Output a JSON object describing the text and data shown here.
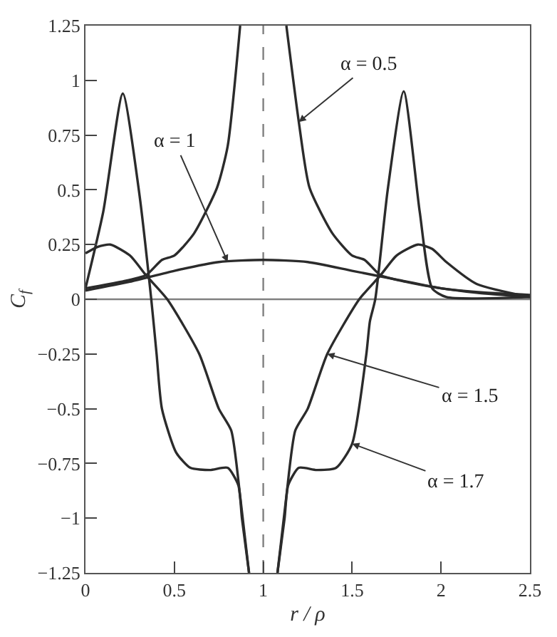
{
  "chart_data": {
    "type": "line",
    "xlabel": "r / ρ",
    "ylabel": "C$_{f}$",
    "xlim": [
      0,
      2.5
    ],
    "xticks": [
      0,
      0.5,
      1,
      1.5,
      2,
      2.5
    ],
    "ylim": [
      -1.25,
      1.25
    ],
    "yticks": [
      {
        "value": -1.25,
        "label": "−1.25"
      },
      {
        "value": -1,
        "label": "−1"
      },
      {
        "value": -0.75,
        "label": "−0.75"
      },
      {
        "value": -0.5,
        "label": "−0.5"
      },
      {
        "value": -0.25,
        "label": "−0.25"
      },
      0,
      0.25,
      0.5,
      0.75,
      1,
      1.25
    ],
    "grid": false,
    "marker": "none",
    "line_style": "solid",
    "series": [
      {
        "color": "#2b2b2b",
        "x": [
          0,
          0.2,
          0.34,
          0.43,
          0.5,
          0.61,
          0.74,
          0.8,
          0.87,
          1.0,
          1.13,
          1.2,
          1.26,
          1.39,
          1.5,
          1.57,
          1.66,
          1.8,
          2.0,
          2.2,
          2.5
        ],
        "values": [
          0.05,
          0.08,
          0.11,
          0.18,
          0.2,
          0.3,
          0.51,
          0.7,
          1.25,
          null,
          1.25,
          0.81,
          0.51,
          0.3,
          0.2,
          0.18,
          0.11,
          0.08,
          0.05,
          0.03,
          0.01
        ]
      },
      {
        "color": "#2b2b2b",
        "x": [
          0,
          0.25,
          0.5,
          0.75,
          1,
          1.25,
          1.5,
          1.75,
          2,
          2.25,
          2.5
        ],
        "values": [
          0.04,
          0.08,
          0.13,
          0.17,
          0.18,
          0.17,
          0.13,
          0.09,
          0.05,
          0.03,
          0.02
        ]
      },
      {
        "color": "#2b2b2b",
        "x": [
          0,
          0.07,
          0.14,
          0.25,
          0.34,
          0.46,
          0.64,
          0.75,
          0.82,
          0.87,
          0.92,
          1.0,
          1.08,
          1.13,
          1.18,
          1.25,
          1.36,
          1.54,
          1.66,
          1.75,
          1.87,
          1.95,
          2.03,
          2.2,
          2.5
        ],
        "values": [
          0.21,
          0.24,
          0.25,
          0.2,
          0.11,
          0,
          -0.25,
          -0.5,
          -0.6,
          -0.9,
          -1.25,
          null,
          -1.25,
          -0.9,
          -0.6,
          -0.5,
          -0.25,
          0,
          0.11,
          0.2,
          0.25,
          0.23,
          0.17,
          0.07,
          0.01
        ]
      },
      {
        "color": "#2b2b2b",
        "x": [
          0,
          0.1,
          0.21,
          0.3,
          0.37,
          0.4,
          0.43,
          0.51,
          0.59,
          0.7,
          0.8,
          0.86,
          0.88,
          0.92,
          1.0,
          1.08,
          1.12,
          1.14,
          1.2,
          1.3,
          1.41,
          1.5,
          1.58,
          1.6,
          1.63,
          1.7,
          1.79,
          1.88,
          1.95,
          2.03,
          2.5
        ],
        "values": [
          0.05,
          0.4,
          0.94,
          0.5,
          0,
          -0.25,
          -0.5,
          -0.7,
          -0.77,
          -0.78,
          -0.77,
          -0.85,
          -1,
          -1.25,
          null,
          -1.25,
          -1,
          -0.85,
          -0.77,
          -0.78,
          -0.77,
          -0.66,
          -0.25,
          -0.1,
          0,
          0.5,
          0.95,
          0.4,
          0.05,
          0.01,
          0.01
        ]
      }
    ],
    "ref_lines": [
      {
        "axis": "x",
        "value": 1,
        "color": "#808080",
        "line_style": "dashed"
      },
      {
        "axis": "y",
        "value": 0,
        "color": "#808080",
        "line_style": "solid"
      }
    ],
    "annotations": [
      {
        "text": "α = 0.5",
        "x": 1.2,
        "y": 0.81
      },
      {
        "text": "α = 1",
        "x": 0.8,
        "y": 0.17
      },
      {
        "text": "α = 1.5",
        "x": 1.36,
        "y": -0.25
      },
      {
        "text": "α = 1.7",
        "x": 1.5,
        "y": -0.66
      }
    ]
  }
}
